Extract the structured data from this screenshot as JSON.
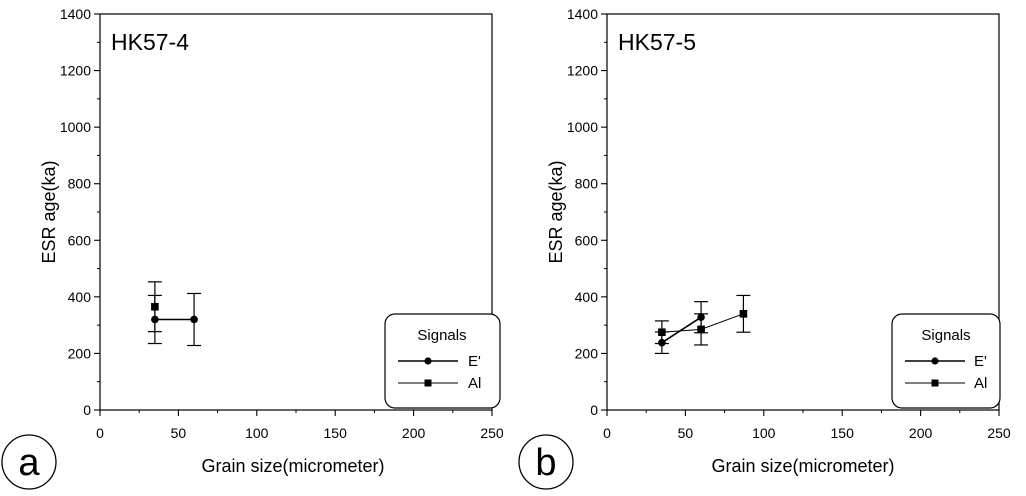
{
  "chart_data": [
    {
      "type": "scatter",
      "panel_label": "a",
      "title": "HK57-4",
      "xlabel": "Grain size(micrometer)",
      "ylabel": "ESR age(ka)",
      "xlim": [
        0,
        250
      ],
      "ylim": [
        0,
        1400
      ],
      "xticks": [
        "0",
        "50",
        "100",
        "150",
        "200",
        "250"
      ],
      "yticks": [
        "0",
        "200",
        "400",
        "600",
        "800",
        "1000",
        "1200",
        "1400"
      ],
      "grid": false,
      "legend": {
        "title": "Signals",
        "placement": "bottom-right"
      },
      "series": [
        {
          "name": "E'",
          "marker": "circle",
          "color": "#000000",
          "points": [
            {
              "x": 35,
              "y": 320,
              "err": 85
            },
            {
              "x": 60,
              "y": 320,
              "err": 92
            }
          ]
        },
        {
          "name": "Al",
          "marker": "square",
          "color": "#000000",
          "points": [
            {
              "x": 35,
              "y": 365,
              "err": 88
            }
          ]
        }
      ]
    },
    {
      "type": "scatter",
      "panel_label": "b",
      "title": "HK57-5",
      "xlabel": "Grain size(micrometer)",
      "ylabel": "ESR age(ka)",
      "xlim": [
        0,
        250
      ],
      "ylim": [
        0,
        1400
      ],
      "xticks": [
        "0",
        "50",
        "100",
        "150",
        "200",
        "250"
      ],
      "yticks": [
        "0",
        "200",
        "400",
        "600",
        "800",
        "1000",
        "1200",
        "1400"
      ],
      "grid": false,
      "legend": {
        "title": "Signals",
        "placement": "bottom-right"
      },
      "series": [
        {
          "name": "E'",
          "marker": "circle",
          "color": "#000000",
          "points": [
            {
              "x": 35,
              "y": 238,
              "err": 38
            },
            {
              "x": 60,
              "y": 328,
              "err": 55
            }
          ]
        },
        {
          "name": "Al",
          "marker": "square",
          "color": "#000000",
          "points": [
            {
              "x": 35,
              "y": 275,
              "err": 40
            },
            {
              "x": 60,
              "y": 285,
              "err": 55
            },
            {
              "x": 87,
              "y": 340,
              "err": 65
            }
          ]
        }
      ]
    }
  ]
}
